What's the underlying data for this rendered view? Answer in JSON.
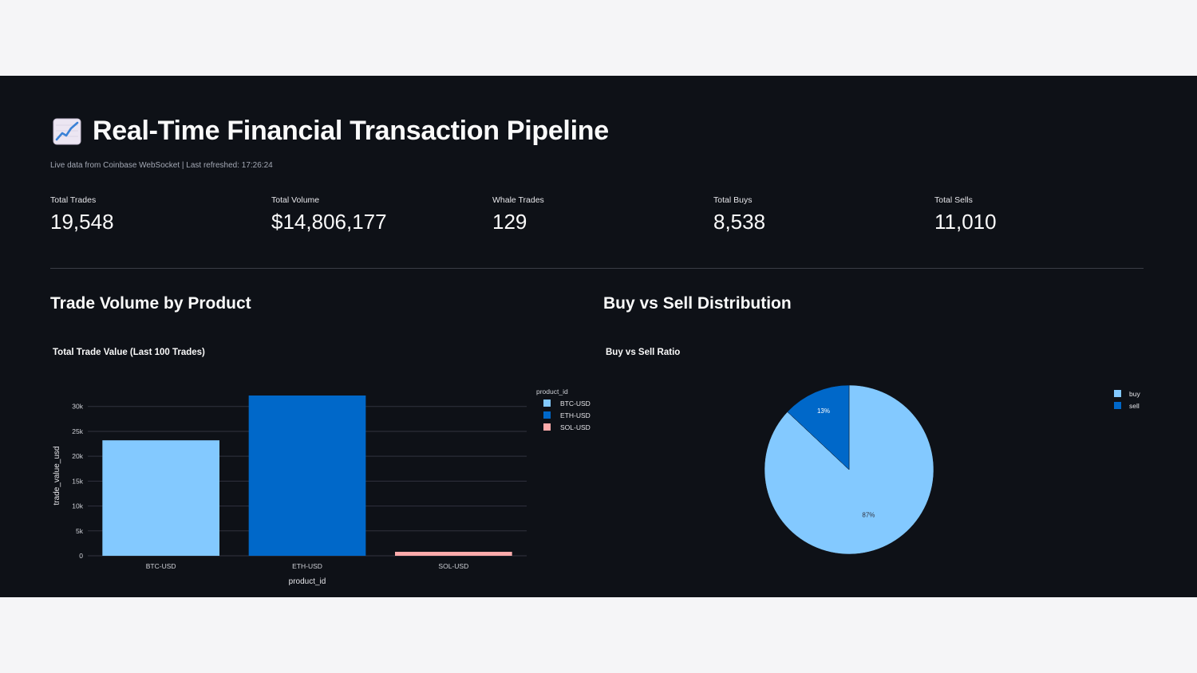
{
  "header": {
    "title": "Real-Time Financial Transaction Pipeline",
    "icon": "chart-increasing-icon",
    "caption": "Live data from Coinbase WebSocket | Last refreshed: 17:26:24"
  },
  "metrics": [
    {
      "label": "Total Trades",
      "value": "19,548"
    },
    {
      "label": "Total Volume",
      "value": "$14,806,177"
    },
    {
      "label": "Whale Trades",
      "value": "129"
    },
    {
      "label": "Total Buys",
      "value": "8,538"
    },
    {
      "label": "Total Sells",
      "value": "11,010"
    }
  ],
  "sections": {
    "volume": "Trade Volume by Product",
    "distribution": "Buy vs Sell Distribution"
  },
  "chart_data": [
    {
      "type": "bar",
      "title": "Total Trade Value (Last 100 Trades)",
      "xlabel": "product_id",
      "ylabel": "trade_value_usd",
      "categories": [
        "BTC-USD",
        "ETH-USD",
        "SOL-USD"
      ],
      "values": [
        23200,
        32200,
        800
      ],
      "colors": [
        "#83c9ff",
        "#0068c9",
        "#ffabab"
      ],
      "ylim": [
        0,
        32200
      ],
      "yticks": [
        0,
        5000,
        10000,
        15000,
        20000,
        25000,
        30000
      ],
      "ytick_labels": [
        "0",
        "5k",
        "10k",
        "15k",
        "20k",
        "25k",
        "30k"
      ],
      "legend_title": "product_id",
      "legend": [
        "BTC-USD",
        "ETH-USD",
        "SOL-USD"
      ],
      "grid": true
    },
    {
      "type": "pie",
      "title": "Buy vs Sell Ratio",
      "labels": [
        "buy",
        "sell"
      ],
      "values": [
        87,
        13
      ],
      "value_labels": [
        "87%",
        "13%"
      ],
      "colors": [
        "#83c9ff",
        "#0068c9"
      ],
      "legend": [
        "buy",
        "sell"
      ]
    }
  ]
}
